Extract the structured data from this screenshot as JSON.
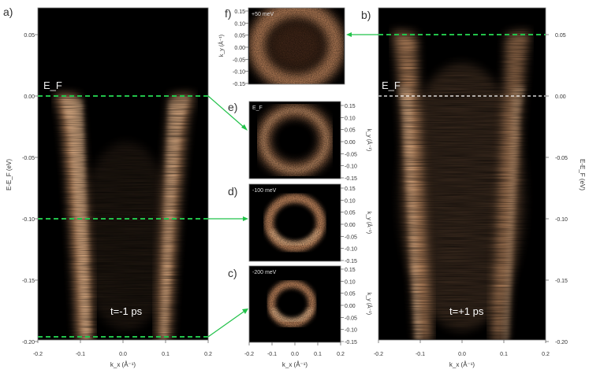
{
  "colors": {
    "background": "#000000",
    "band": "#f7b27e",
    "band_bright": "#ffd3a8",
    "marker_green": "#22c24a",
    "marker_white": "#ffffff",
    "axis_text": "#333333"
  },
  "panels": {
    "a": {
      "letter": "a)",
      "ylabel": "E-E_F (eV)",
      "xlabel": "k_x (Å⁻¹)",
      "time_label": "t=-1 ps",
      "ef_label": "E_F",
      "yticks": [
        "0.05",
        "0.00",
        "-0.05",
        "-0.10",
        "-0.15",
        "-0.20"
      ],
      "xticks": [
        "-0.2",
        "-0.1",
        "0.0",
        "0.1",
        "0.2"
      ]
    },
    "b": {
      "letter": "b)",
      "ylabel": "E-E_F (eV)",
      "xlabel": "k_x (Å⁻¹)",
      "time_label": "t=+1 ps",
      "ef_label": "E_F",
      "yticks": [
        "0.05",
        "0.00",
        "-0.05",
        "-0.10",
        "-0.15",
        "-0.20"
      ],
      "xticks": [
        "-0.2",
        "-0.1",
        "0.0",
        "0.1",
        "0.2"
      ]
    },
    "c": {
      "letter": "c)",
      "energy": "-200 meV",
      "ylabel": "k_y (Å⁻¹)",
      "yticks": [
        "0.15",
        "0.10",
        "0.05",
        "0.00",
        "-0.05",
        "-0.10",
        "-0.15"
      ]
    },
    "d": {
      "letter": "d)",
      "energy": "-100 meV",
      "ylabel": "k_y (Å⁻¹)",
      "yticks": [
        "0.15",
        "0.10",
        "0.05",
        "0.00",
        "-0.05",
        "-0.10",
        "-0.15"
      ]
    },
    "e": {
      "letter": "e)",
      "energy": "E_F",
      "ylabel": "k_y (Å⁻¹)",
      "yticks": [
        "0.15",
        "0.10",
        "0.05",
        "0.00",
        "-0.05",
        "-0.10",
        "-0.15"
      ]
    },
    "f": {
      "letter": "f)",
      "energy": "+50 meV",
      "ylabel": "k_y (Å⁻¹)",
      "yticks": [
        "0.15",
        "0.10",
        "0.05",
        "0.00",
        "-0.05",
        "-0.10",
        "-0.15"
      ]
    },
    "cd_xlabel": "k_x (Å⁻¹)",
    "cd_xticks": [
      "-0.2",
      "-0.1",
      "0.0",
      "0.1",
      "0.2"
    ]
  },
  "chart_data": [
    {
      "panel": "a",
      "type": "heatmap",
      "x_range": [
        -0.2,
        0.2
      ],
      "y_range": [
        -0.2,
        0.07
      ],
      "band_kf_at_EF": 0.12,
      "cut_energies": [
        0.0,
        -0.1,
        -0.197
      ]
    },
    {
      "panel": "b",
      "type": "heatmap",
      "x_range": [
        -0.2,
        0.2
      ],
      "y_range": [
        -0.2,
        0.07
      ],
      "band_kf_at_EF": 0.12,
      "cut_energies": [
        0.05,
        0.0
      ]
    },
    {
      "panel": "c",
      "type": "heatmap",
      "energy": "-200 meV",
      "ring_radius": 0.08
    },
    {
      "panel": "d",
      "type": "heatmap",
      "energy": "-100 meV",
      "ring_radius": 0.1
    },
    {
      "panel": "e",
      "type": "heatmap",
      "energy": "E_F",
      "ring_radius": 0.12
    },
    {
      "panel": "f",
      "type": "heatmap",
      "energy": "+50 meV",
      "ring_radius": 0.13
    }
  ]
}
